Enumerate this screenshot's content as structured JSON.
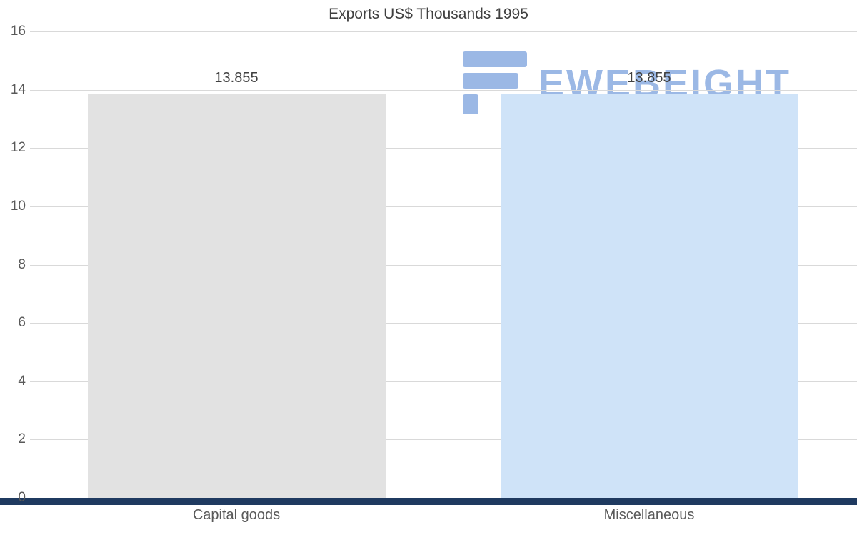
{
  "chart_data": {
    "type": "bar",
    "title": "Exports US$ Thousands 1995",
    "categories": [
      "Capital goods",
      "Miscellaneous"
    ],
    "values": [
      13.855,
      13.855
    ],
    "value_labels": [
      "13.855",
      "13.855"
    ],
    "bar_colors": [
      "#e2e2e2",
      "#cfe3f8"
    ],
    "xlabel": "",
    "ylabel": "",
    "ylim": [
      0,
      16
    ],
    "yticks": [
      0,
      2,
      4,
      6,
      8,
      10,
      12,
      14,
      16
    ],
    "grid": true,
    "legend": "none"
  },
  "watermark": {
    "text": "EWEBEIGHT",
    "color": "#4a7fd1"
  },
  "colors": {
    "axis_line": "#1f3a60",
    "gridline": "#d9d9d9",
    "title_text": "#3f3f3f",
    "tick_text": "#595959",
    "value_text": "#404040"
  }
}
